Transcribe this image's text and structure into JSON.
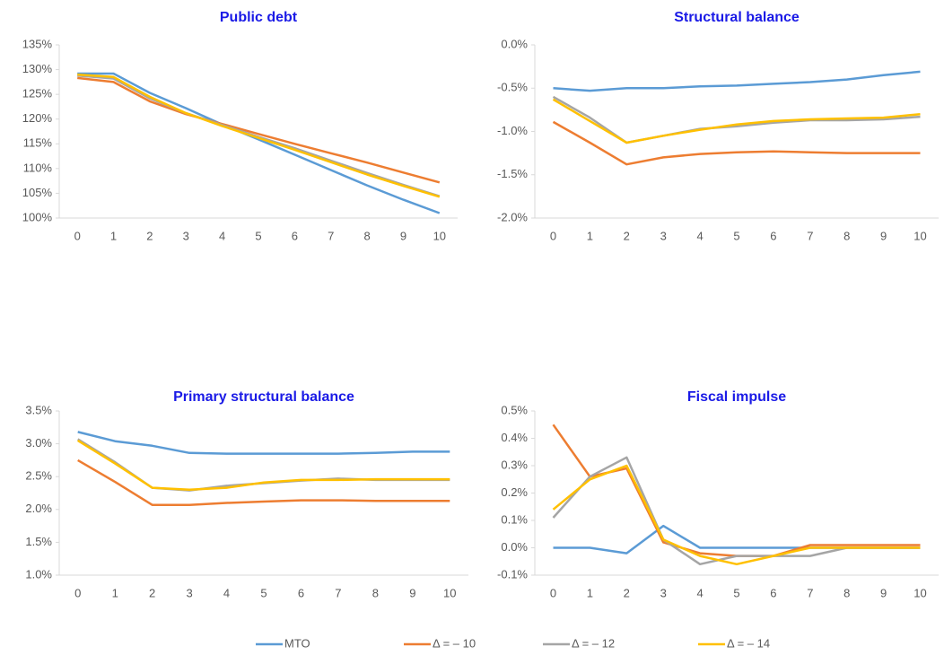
{
  "chart_data": [
    {
      "type": "line",
      "title": "Public debt",
      "categories": [
        "0",
        "1",
        "2",
        "3",
        "4",
        "5",
        "6",
        "7",
        "8",
        "9",
        "10"
      ],
      "ylim": [
        100,
        135
      ],
      "yticks": [
        {
          "value": 100,
          "label": "100%"
        },
        {
          "value": 105,
          "label": "105%"
        },
        {
          "value": 110,
          "label": "110%"
        },
        {
          "value": 115,
          "label": "115%"
        },
        {
          "value": 120,
          "label": "120%"
        },
        {
          "value": 125,
          "label": "125%"
        },
        {
          "value": 130,
          "label": "130%"
        },
        {
          "value": 135,
          "label": "135%"
        }
      ],
      "series": [
        {
          "values": [
            129.2,
            129.2,
            125.3,
            122.2,
            118.9,
            115.9,
            112.8,
            109.7,
            106.6,
            103.7,
            101.0
          ]
        },
        {
          "values": [
            128.3,
            127.5,
            123.6,
            121.0,
            119.0,
            117.0,
            115.0,
            113.1,
            111.2,
            109.2,
            107.2
          ]
        },
        {
          "values": [
            128.8,
            128.2,
            124.2,
            121.2,
            118.8,
            116.4,
            114.1,
            111.6,
            109.1,
            106.7,
            104.4
          ]
        },
        {
          "values": [
            129.0,
            128.5,
            124.5,
            121.2,
            118.6,
            116.2,
            113.8,
            111.3,
            108.8,
            106.5,
            104.3
          ]
        }
      ]
    },
    {
      "type": "line",
      "title": "Structural balance",
      "categories": [
        "0",
        "1",
        "2",
        "3",
        "4",
        "5",
        "6",
        "7",
        "8",
        "9",
        "10"
      ],
      "ylim": [
        -2,
        0
      ],
      "yticks": [
        {
          "value": -2,
          "label": "-2.0%"
        },
        {
          "value": -1.5,
          "label": "-1.5%"
        },
        {
          "value": -1,
          "label": "-1.0%"
        },
        {
          "value": -0.5,
          "label": "-0.5%"
        },
        {
          "value": 0,
          "label": "0.0%"
        }
      ],
      "series": [
        {
          "values": [
            -0.5,
            -0.53,
            -0.5,
            -0.5,
            -0.48,
            -0.47,
            -0.45,
            -0.43,
            -0.4,
            -0.35,
            -0.31
          ]
        },
        {
          "values": [
            -0.89,
            -1.13,
            -1.38,
            -1.3,
            -1.26,
            -1.24,
            -1.23,
            -1.24,
            -1.25,
            -1.25,
            -1.25
          ]
        },
        {
          "values": [
            -0.6,
            -0.84,
            -1.13,
            -1.05,
            -0.97,
            -0.94,
            -0.9,
            -0.87,
            -0.87,
            -0.86,
            -0.83
          ]
        },
        {
          "values": [
            -0.63,
            -0.88,
            -1.13,
            -1.05,
            -0.98,
            -0.92,
            -0.88,
            -0.86,
            -0.85,
            -0.84,
            -0.8
          ]
        }
      ]
    },
    {
      "type": "line",
      "title": "Primary structural balance",
      "categories": [
        "0",
        "1",
        "2",
        "3",
        "4",
        "5",
        "6",
        "7",
        "8",
        "9",
        "10"
      ],
      "ylim": [
        1,
        3.5
      ],
      "yticks": [
        {
          "value": 1,
          "label": "1.0%"
        },
        {
          "value": 1.5,
          "label": "1.5%"
        },
        {
          "value": 2,
          "label": "2.0%"
        },
        {
          "value": 2.5,
          "label": "2.5%"
        },
        {
          "value": 3,
          "label": "3.0%"
        },
        {
          "value": 3.5,
          "label": "3.5%"
        }
      ],
      "series": [
        {
          "values": [
            3.18,
            3.04,
            2.97,
            2.86,
            2.85,
            2.85,
            2.85,
            2.85,
            2.86,
            2.88,
            2.88
          ]
        },
        {
          "values": [
            2.75,
            2.42,
            2.07,
            2.07,
            2.1,
            2.12,
            2.14,
            2.14,
            2.13,
            2.13,
            2.13
          ]
        },
        {
          "values": [
            3.07,
            2.72,
            2.33,
            2.29,
            2.36,
            2.4,
            2.44,
            2.47,
            2.45,
            2.45,
            2.45
          ]
        },
        {
          "values": [
            3.05,
            2.7,
            2.33,
            2.3,
            2.33,
            2.41,
            2.45,
            2.45,
            2.46,
            2.46,
            2.46
          ]
        }
      ]
    },
    {
      "type": "line",
      "title": "Fiscal impulse",
      "categories": [
        "0",
        "1",
        "2",
        "3",
        "4",
        "5",
        "6",
        "7",
        "8",
        "9",
        "10"
      ],
      "ylim": [
        -0.1,
        0.5
      ],
      "yticks": [
        {
          "value": -0.1,
          "label": "-0.1%"
        },
        {
          "value": 0,
          "label": "0.0%"
        },
        {
          "value": 0.1,
          "label": "0.1%"
        },
        {
          "value": 0.2,
          "label": "0.2%"
        },
        {
          "value": 0.3,
          "label": "0.3%"
        },
        {
          "value": 0.4,
          "label": "0.4%"
        },
        {
          "value": 0.5,
          "label": "0.5%"
        }
      ],
      "series": [
        {
          "values": [
            0,
            0,
            -0.02,
            0.08,
            0,
            0,
            0,
            0,
            0,
            0,
            0
          ]
        },
        {
          "values": [
            0.45,
            0.26,
            0.29,
            0.02,
            -0.02,
            -0.03,
            -0.03,
            0.01,
            0.01,
            0.01,
            0.01
          ]
        },
        {
          "values": [
            0.11,
            0.26,
            0.33,
            0.03,
            -0.06,
            -0.03,
            -0.03,
            -0.03,
            0,
            0,
            0
          ]
        },
        {
          "values": [
            0.14,
            0.25,
            0.3,
            0.03,
            -0.03,
            -0.06,
            -0.03,
            0,
            0,
            0,
            0
          ]
        }
      ]
    }
  ],
  "legend": [
    {
      "name": "MTO",
      "color": "#5b9bd5"
    },
    {
      "name": "Δ = – 10",
      "color": "#ed7d31"
    },
    {
      "name": "Δ = – 12",
      "color": "#a5a5a5"
    },
    {
      "name": "Δ = – 14",
      "color": "#ffc000"
    }
  ]
}
